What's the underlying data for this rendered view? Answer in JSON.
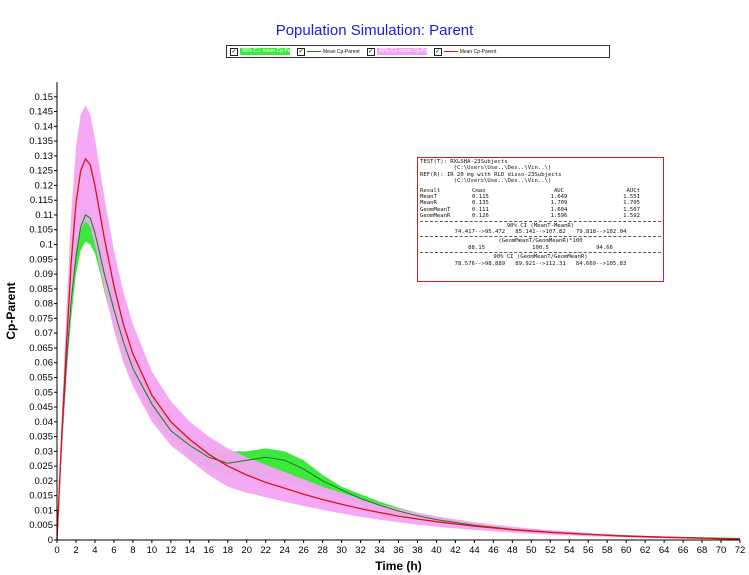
{
  "chart_data": {
    "type": "area",
    "title": "Population Simulation: Parent",
    "xlabel": "Time (h)",
    "ylabel": "Cp-Parent",
    "xlim": [
      0,
      72
    ],
    "ylim": [
      0,
      0.155
    ],
    "x_ticks": [
      0,
      2,
      4,
      6,
      8,
      10,
      12,
      14,
      16,
      18,
      20,
      22,
      24,
      26,
      28,
      30,
      32,
      34,
      36,
      38,
      40,
      42,
      44,
      46,
      48,
      50,
      52,
      54,
      56,
      58,
      60,
      62,
      64,
      66,
      68,
      70,
      72
    ],
    "y_ticks": [
      "0",
      "0.005",
      "0.01",
      "0.015",
      "0.02",
      "0.025",
      "0.03",
      "0.035",
      "0.04",
      "0.045",
      "0.05",
      "0.055",
      "0.06",
      "0.065",
      "0.07",
      "0.075",
      "0.08",
      "0.085",
      "0.09",
      "0.095",
      "0.1",
      "0.105",
      "0.11",
      "0.115",
      "0.12",
      "0.125",
      "0.13",
      "0.135",
      "0.14",
      "0.145",
      "0.15"
    ],
    "x": [
      0,
      0.5,
      1,
      1.5,
      2,
      2.5,
      3,
      3.5,
      4,
      4.5,
      5,
      6,
      7,
      8,
      10,
      12,
      14,
      16,
      18,
      20,
      22,
      24,
      26,
      28,
      30,
      32,
      34,
      36,
      38,
      40,
      44,
      48,
      52,
      56,
      60,
      64,
      68,
      72
    ],
    "series": [
      {
        "name": "90% C.I. mean Cp-Parent",
        "band": "lower",
        "color": "#3de83d",
        "lower": [
          0,
          0.03,
          0.055,
          0.075,
          0.09,
          0.098,
          0.101,
          0.1,
          0.097,
          0.091,
          0.084,
          0.072,
          0.062,
          0.054,
          0.042,
          0.034,
          0.028,
          0.024,
          0.022,
          0.022,
          0.021,
          0.02,
          0.018,
          0.016,
          0.014,
          0.012,
          0.01,
          0.0086,
          0.0073,
          0.0062,
          0.0045,
          0.0032,
          0.0023,
          0.0017,
          0.0012,
          0.0009,
          0.0006,
          0.0004
        ],
        "upper": [
          0,
          0.037,
          0.066,
          0.088,
          0.102,
          0.11,
          0.112,
          0.111,
          0.107,
          0.101,
          0.094,
          0.082,
          0.071,
          0.062,
          0.049,
          0.04,
          0.035,
          0.031,
          0.03,
          0.03,
          0.031,
          0.03,
          0.027,
          0.022,
          0.018,
          0.0155,
          0.013,
          0.0109,
          0.0092,
          0.0078,
          0.0057,
          0.0041,
          0.003,
          0.0022,
          0.0016,
          0.0012,
          0.0008,
          0.0005
        ]
      },
      {
        "name": "Mean Cp-Parent",
        "color": "#1a7a1a",
        "values": [
          0,
          0.034,
          0.06,
          0.081,
          0.096,
          0.106,
          0.11,
          0.109,
          0.104,
          0.097,
          0.09,
          0.078,
          0.067,
          0.058,
          0.046,
          0.037,
          0.032,
          0.028,
          0.026,
          0.027,
          0.028,
          0.027,
          0.024,
          0.02,
          0.017,
          0.014,
          0.0118,
          0.0098,
          0.0082,
          0.0069,
          0.005,
          0.0036,
          0.0026,
          0.0019,
          0.0014,
          0.001,
          0.0007,
          0.0005
        ]
      },
      {
        "name": "90% C.I. mean Cp-Parent",
        "band": "upper",
        "color": "#f4a4f4",
        "lower": [
          0,
          0.028,
          0.054,
          0.078,
          0.096,
          0.105,
          0.108,
          0.106,
          0.1,
          0.093,
          0.085,
          0.071,
          0.06,
          0.052,
          0.04,
          0.032,
          0.027,
          0.022,
          0.018,
          0.016,
          0.0145,
          0.013,
          0.0115,
          0.0102,
          0.009,
          0.0079,
          0.0069,
          0.006,
          0.0052,
          0.0045,
          0.0034,
          0.0025,
          0.0018,
          0.0013,
          0.0009,
          0.0006,
          0.0004,
          0.0002
        ],
        "upper": [
          0,
          0.042,
          0.078,
          0.11,
          0.133,
          0.144,
          0.147,
          0.144,
          0.136,
          0.126,
          0.116,
          0.098,
          0.084,
          0.073,
          0.057,
          0.047,
          0.04,
          0.035,
          0.031,
          0.028,
          0.0255,
          0.023,
          0.0205,
          0.018,
          0.016,
          0.014,
          0.0122,
          0.0106,
          0.0092,
          0.008,
          0.006,
          0.0045,
          0.0033,
          0.0024,
          0.0017,
          0.0012,
          0.0008,
          0.0005
        ]
      },
      {
        "name": "Mean Cp-Parent",
        "color": "#e01010",
        "values": [
          0,
          0.035,
          0.066,
          0.094,
          0.114,
          0.125,
          0.129,
          0.127,
          0.12,
          0.111,
          0.102,
          0.086,
          0.073,
          0.063,
          0.049,
          0.04,
          0.034,
          0.029,
          0.025,
          0.022,
          0.0195,
          0.0175,
          0.0155,
          0.0137,
          0.0121,
          0.0106,
          0.0093,
          0.0081,
          0.0071,
          0.0062,
          0.0047,
          0.0035,
          0.0026,
          0.0019,
          0.0013,
          0.0009,
          0.0006,
          0.0003
        ]
      }
    ],
    "legend_position": "top",
    "grid": false
  },
  "legend": {
    "items": [
      {
        "label": "90% C.I. mean Cp-Parent",
        "kind": "fill",
        "color": "#3de83d",
        "checked": "✓"
      },
      {
        "label": "Mean Cp-Parent",
        "kind": "line",
        "color": "#1a7a1a",
        "checked": "✓"
      },
      {
        "label": "90% C.I. mean Cp-Parent",
        "kind": "fill",
        "color": "#f4a4f4",
        "checked": "✓"
      },
      {
        "label": "Mean Cp-Parent",
        "kind": "line",
        "color": "#e01010",
        "checked": "✓"
      }
    ]
  },
  "stats_box": {
    "test_line1": "TEST(T): RXLSHA-23Subjects",
    "test_line2": "          (C:\\Users\\Use..\\Des..\\Vin..\\)",
    "ref_line1": "REF(R): IR 20 mg with RLD disso-23Subjects",
    "ref_line2": "          (C:\\Users\\Use..\\Des..\\Vin..\\)",
    "header": [
      "Result",
      "Cmax",
      "AUC",
      "AUCt"
    ],
    "rows": [
      [
        "MeanT",
        "0.115",
        "1.649",
        "1.551"
      ],
      [
        "MeanR",
        "0.135",
        "1.709",
        "1.705"
      ],
      [
        "GeomMeanT",
        "0.111",
        "1.604",
        "1.507"
      ],
      [
        "GeomMeanR",
        "0.126",
        "1.596",
        "1.592"
      ]
    ],
    "ci_title": "90% CI (MeanT-MeanR)",
    "ci_values": "74.417-->95.472   85.141-->107.82   79.818-->102.04",
    "geo_title": "(GeomMeanT/GeomMeanR)*100",
    "geo_values": "88.15              100.5              94.66",
    "geo_ci_title": "90% CI (GeomMeanT/GeomMeanR)",
    "geo_ci_values": "78.576-->98.889   89.921-->112.31   84.669-->105.83"
  }
}
